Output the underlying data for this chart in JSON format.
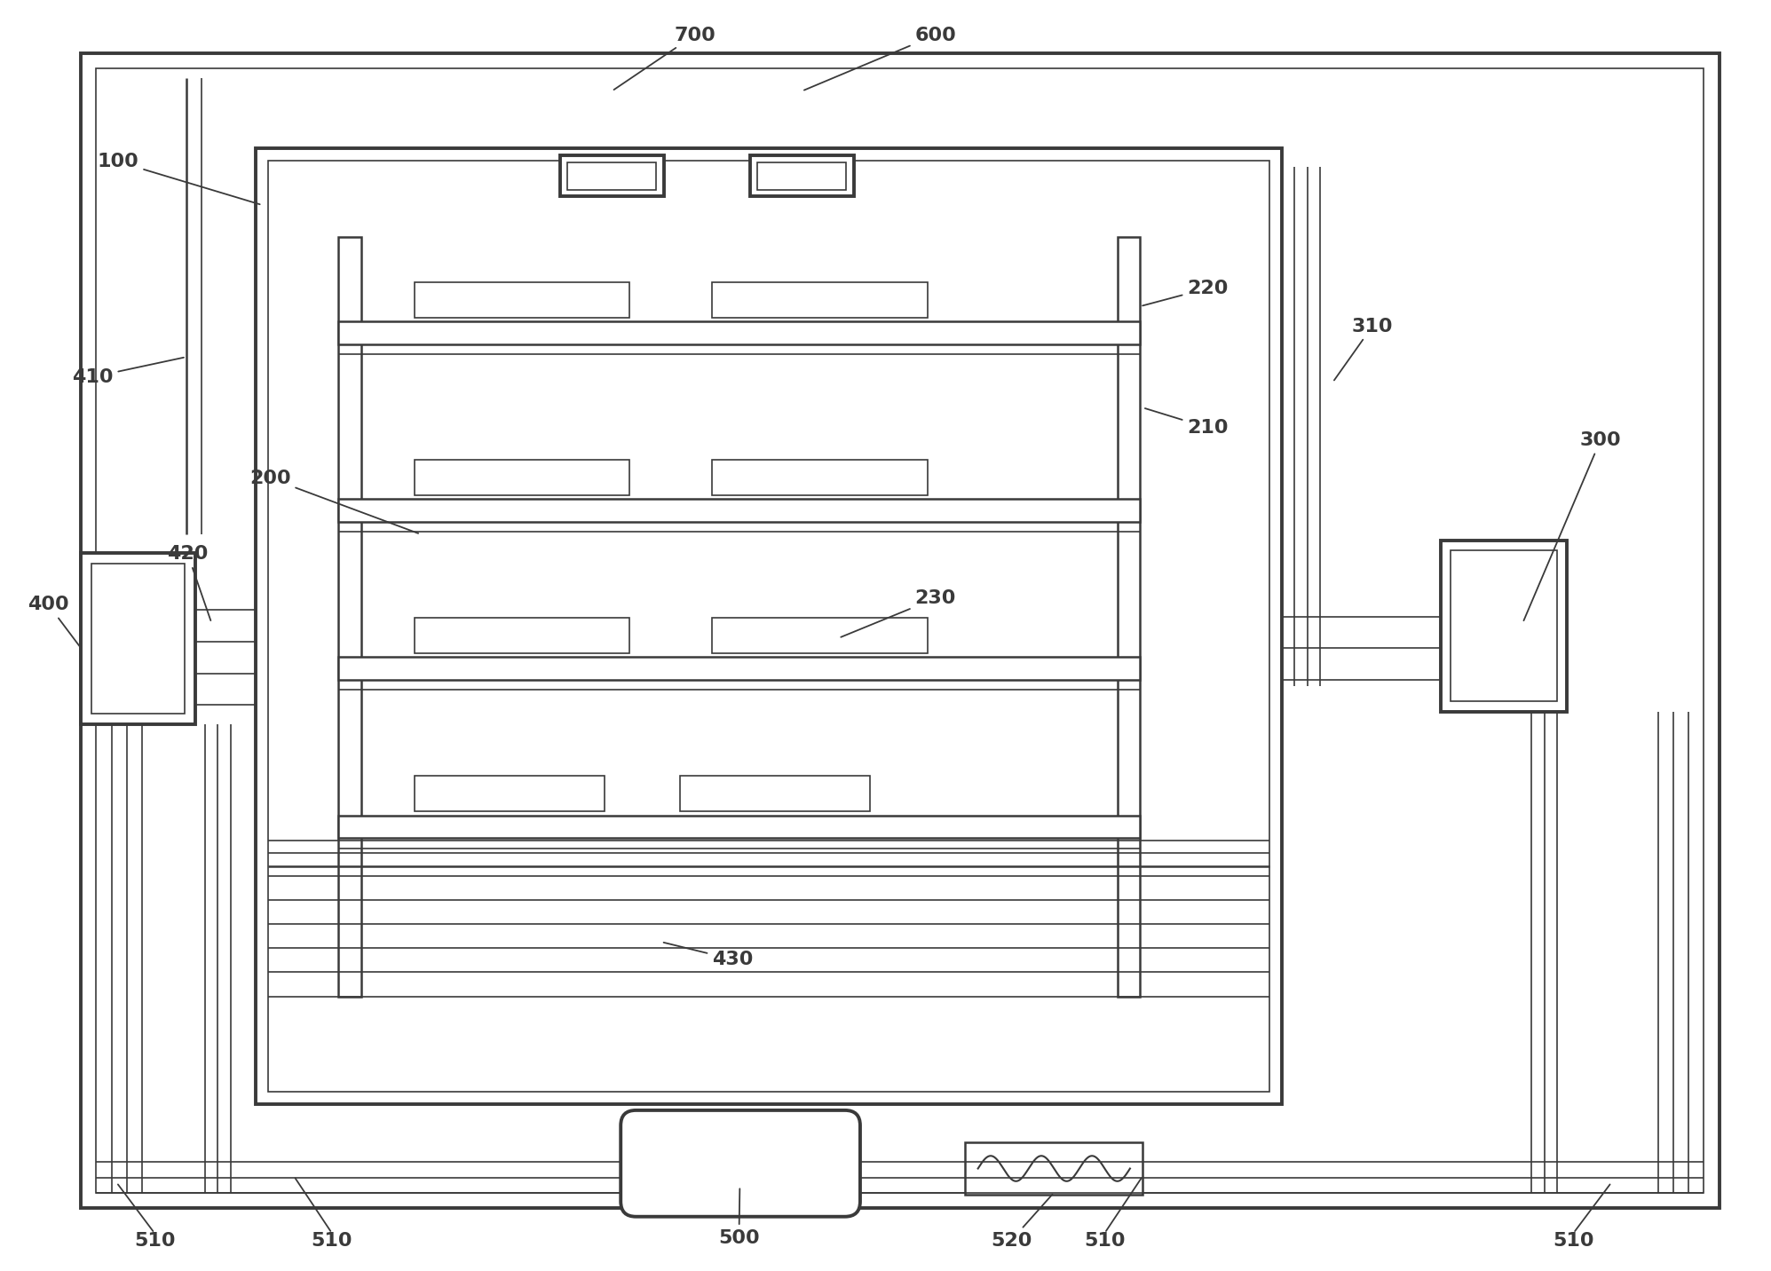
{
  "bg_color": "#ffffff",
  "lc": "#3a3a3a",
  "lw_heavy": 2.8,
  "lw_med": 1.8,
  "lw_light": 1.2,
  "fig_w": 19.95,
  "fig_h": 14.32,
  "dpi": 100,
  "label_fs": 16,
  "label_fw": "bold"
}
